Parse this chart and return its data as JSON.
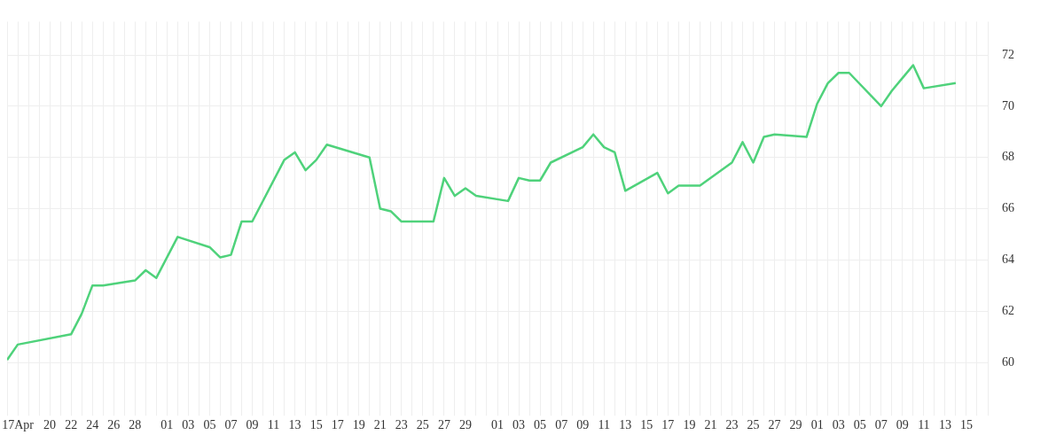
{
  "chart_data": {
    "type": "line",
    "x": [
      "--04-16",
      "--04-17",
      "--04-22",
      "--04-23",
      "--04-24",
      "--04-25",
      "--04-28",
      "--04-29",
      "--04-30",
      "--05-02",
      "--05-05",
      "--05-06",
      "--05-07",
      "--05-08",
      "--05-09",
      "--05-12",
      "--05-13",
      "--05-14",
      "--05-15",
      "--05-16",
      "--05-20",
      "--05-21",
      "--05-22",
      "--05-23",
      "--05-26",
      "--05-27",
      "--05-28",
      "--05-29",
      "--05-30",
      "--06-02",
      "--06-03",
      "--06-04",
      "--06-05",
      "--06-06",
      "--06-09",
      "--06-10",
      "--06-11",
      "--06-12",
      "--06-13",
      "--06-16",
      "--06-17",
      "--06-18",
      "--06-20",
      "--06-23",
      "--06-24",
      "--06-25",
      "--06-26",
      "--06-27",
      "--06-30",
      "--07-01",
      "--07-02",
      "--07-03",
      "--07-04",
      "--07-07",
      "--07-08",
      "--07-10",
      "--07-11",
      "--07-14"
    ],
    "series": [
      {
        "color": "#4fd27b",
        "values": [
          60.1,
          60.7,
          61.1,
          61.9,
          63.0,
          63.0,
          63.2,
          63.6,
          63.3,
          64.9,
          64.5,
          64.1,
          64.2,
          65.5,
          65.5,
          67.9,
          68.2,
          67.5,
          67.9,
          68.5,
          68.0,
          66.0,
          65.9,
          65.5,
          65.5,
          67.2,
          66.5,
          66.8,
          66.5,
          66.3,
          67.2,
          67.1,
          67.1,
          67.8,
          68.4,
          68.9,
          68.4,
          68.2,
          66.7,
          67.4,
          66.6,
          66.9,
          66.9,
          67.8,
          68.6,
          67.8,
          68.8,
          68.9,
          68.8,
          70.1,
          70.9,
          71.3,
          71.3,
          70.0,
          70.6,
          71.6,
          70.7,
          70.9
        ]
      }
    ],
    "xlim": [
      "--04-16",
      "--07-17"
    ],
    "xticks": [
      {
        "value": "--04-16",
        "label": null
      },
      {
        "value": "--04-17",
        "label": "17Apr"
      },
      {
        "value": "--04-18",
        "label": null
      },
      {
        "value": "--04-19",
        "label": null
      },
      {
        "value": "--04-20",
        "label": "20"
      },
      {
        "value": "--04-21",
        "label": null
      },
      {
        "value": "--04-22",
        "label": "22"
      },
      {
        "value": "--04-23",
        "label": null
      },
      {
        "value": "--04-24",
        "label": "24"
      },
      {
        "value": "--04-25",
        "label": null
      },
      {
        "value": "--04-26",
        "label": "26"
      },
      {
        "value": "--04-27",
        "label": null
      },
      {
        "value": "--04-28",
        "label": "28"
      },
      {
        "value": "--04-29",
        "label": null
      },
      {
        "value": "--04-30",
        "label": null
      },
      {
        "value": "--05-01",
        "label": "01"
      },
      {
        "value": "--05-02",
        "label": null
      },
      {
        "value": "--05-03",
        "label": "03"
      },
      {
        "value": "--05-04",
        "label": null
      },
      {
        "value": "--05-05",
        "label": "05"
      },
      {
        "value": "--05-06",
        "label": null
      },
      {
        "value": "--05-07",
        "label": "07"
      },
      {
        "value": "--05-08",
        "label": null
      },
      {
        "value": "--05-09",
        "label": "09"
      },
      {
        "value": "--05-10",
        "label": null
      },
      {
        "value": "--05-11",
        "label": "11"
      },
      {
        "value": "--05-12",
        "label": null
      },
      {
        "value": "--05-13",
        "label": "13"
      },
      {
        "value": "--05-14",
        "label": null
      },
      {
        "value": "--05-15",
        "label": "15"
      },
      {
        "value": "--05-16",
        "label": null
      },
      {
        "value": "--05-17",
        "label": "17"
      },
      {
        "value": "--05-18",
        "label": null
      },
      {
        "value": "--05-19",
        "label": "19"
      },
      {
        "value": "--05-20",
        "label": null
      },
      {
        "value": "--05-21",
        "label": "21"
      },
      {
        "value": "--05-22",
        "label": null
      },
      {
        "value": "--05-23",
        "label": "23"
      },
      {
        "value": "--05-24",
        "label": null
      },
      {
        "value": "--05-25",
        "label": "25"
      },
      {
        "value": "--05-26",
        "label": null
      },
      {
        "value": "--05-27",
        "label": "27"
      },
      {
        "value": "--05-28",
        "label": null
      },
      {
        "value": "--05-29",
        "label": "29"
      },
      {
        "value": "--05-30",
        "label": null
      },
      {
        "value": "--05-31",
        "label": null
      },
      {
        "value": "--06-01",
        "label": "01"
      },
      {
        "value": "--06-02",
        "label": null
      },
      {
        "value": "--06-03",
        "label": "03"
      },
      {
        "value": "--06-04",
        "label": null
      },
      {
        "value": "--06-05",
        "label": "05"
      },
      {
        "value": "--06-06",
        "label": null
      },
      {
        "value": "--06-07",
        "label": "07"
      },
      {
        "value": "--06-08",
        "label": null
      },
      {
        "value": "--06-09",
        "label": "09"
      },
      {
        "value": "--06-10",
        "label": null
      },
      {
        "value": "--06-11",
        "label": "11"
      },
      {
        "value": "--06-12",
        "label": null
      },
      {
        "value": "--06-13",
        "label": "13"
      },
      {
        "value": "--06-14",
        "label": null
      },
      {
        "value": "--06-15",
        "label": "15"
      },
      {
        "value": "--06-16",
        "label": null
      },
      {
        "value": "--06-17",
        "label": "17"
      },
      {
        "value": "--06-18",
        "label": null
      },
      {
        "value": "--06-19",
        "label": "19"
      },
      {
        "value": "--06-20",
        "label": null
      },
      {
        "value": "--06-21",
        "label": "21"
      },
      {
        "value": "--06-22",
        "label": null
      },
      {
        "value": "--06-23",
        "label": "23"
      },
      {
        "value": "--06-24",
        "label": null
      },
      {
        "value": "--06-25",
        "label": "25"
      },
      {
        "value": "--06-26",
        "label": null
      },
      {
        "value": "--06-27",
        "label": "27"
      },
      {
        "value": "--06-28",
        "label": null
      },
      {
        "value": "--06-29",
        "label": "29"
      },
      {
        "value": "--06-30",
        "label": null
      },
      {
        "value": "--07-01",
        "label": "01"
      },
      {
        "value": "--07-02",
        "label": null
      },
      {
        "value": "--07-03",
        "label": "03"
      },
      {
        "value": "--07-04",
        "label": null
      },
      {
        "value": "--07-05",
        "label": "05"
      },
      {
        "value": "--07-06",
        "label": null
      },
      {
        "value": "--07-07",
        "label": "07"
      },
      {
        "value": "--07-08",
        "label": null
      },
      {
        "value": "--07-09",
        "label": "09"
      },
      {
        "value": "--07-10",
        "label": null
      },
      {
        "value": "--07-11",
        "label": "11"
      },
      {
        "value": "--07-12",
        "label": null
      },
      {
        "value": "--07-13",
        "label": "13"
      },
      {
        "value": "--07-14",
        "label": null
      },
      {
        "value": "--07-15",
        "label": "15"
      },
      {
        "value": "--07-16",
        "label": null
      },
      {
        "value": "--07-17",
        "label": null
      }
    ],
    "ylim": [
      58.2,
      73.3
    ],
    "yticks": [
      60,
      62,
      64,
      66,
      68,
      70,
      72
    ],
    "grid": true,
    "marker": "none",
    "line_style": "solid"
  }
}
